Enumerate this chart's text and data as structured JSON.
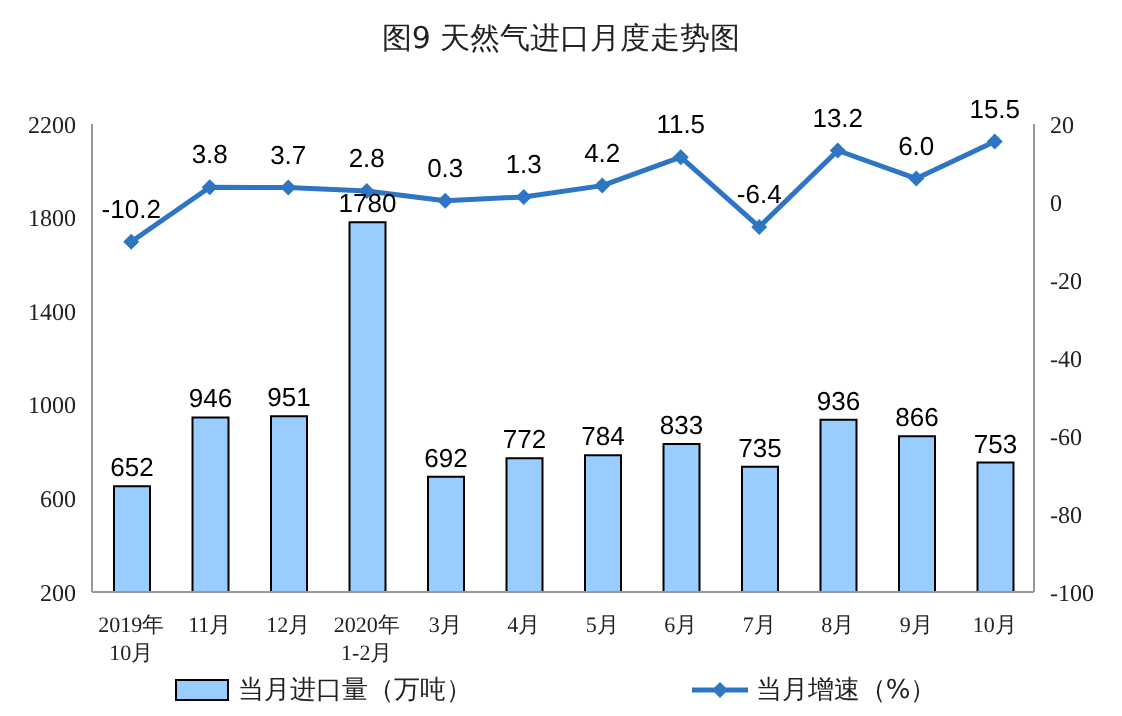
{
  "chart_data": {
    "type": "bar",
    "title": "图9  天然气进口月度走势图",
    "categories": [
      "2019年\n10月",
      "11月",
      "12月",
      "2020年\n1-2月",
      "3月",
      "4月",
      "5月",
      "6月",
      "7月",
      "8月",
      "9月",
      "10月"
    ],
    "series": [
      {
        "name": "当月进口量（万吨）",
        "color": "#99ccff",
        "values": [
          652,
          946,
          951,
          1780,
          692,
          772,
          784,
          833,
          735,
          936,
          866,
          753
        ],
        "value_labels": [
          "652",
          "946",
          "951",
          "1780",
          "692",
          "772",
          "784",
          "833",
          "735",
          "936",
          "866",
          "753"
        ]
      },
      {
        "name": "当月增速（%）",
        "type": "line",
        "axis": "y2",
        "color": "#2e75c3",
        "values": [
          -10.2,
          3.8,
          3.7,
          2.8,
          0.3,
          1.3,
          4.2,
          11.5,
          -6.4,
          13.2,
          6.0,
          15.5
        ],
        "value_labels": [
          "-10.2",
          "3.8",
          "3.7",
          "2.8",
          "0.3",
          "1.3",
          "4.2",
          "11.5",
          "-6.4",
          "13.2",
          "6.0",
          "15.5"
        ]
      }
    ],
    "ylim": [
      200,
      2200
    ],
    "yticks": [
      200,
      600,
      1000,
      1400,
      1800,
      2200
    ],
    "y2lim": [
      -100,
      20
    ],
    "y2ticks": [
      -100,
      -80,
      -60,
      -40,
      -20,
      0,
      20
    ],
    "legend": "bottom",
    "marker": "diamond",
    "grid": false
  }
}
